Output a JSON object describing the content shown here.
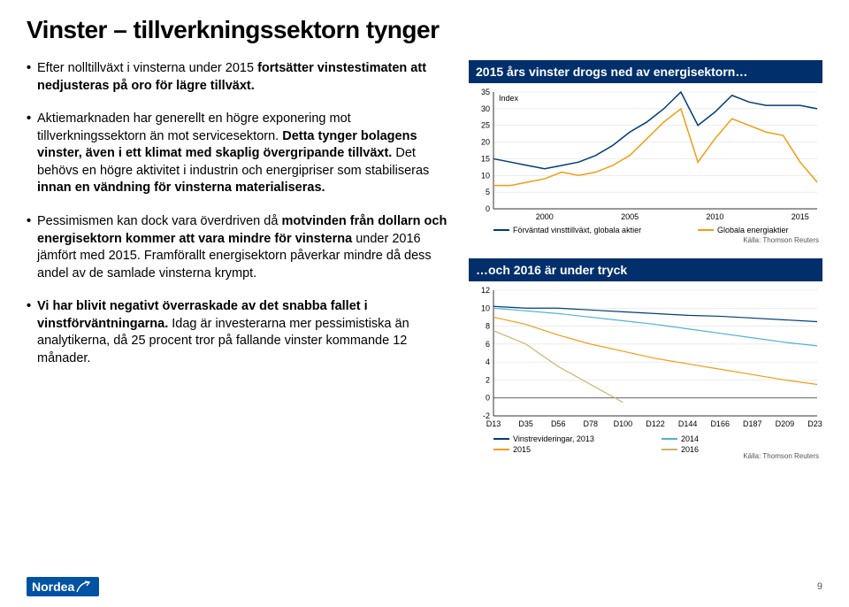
{
  "title": "Vinster – tillverkningssektorn tynger",
  "bullets": [
    {
      "pre": "Efter nolltillväxt i vinsterna under 2015 ",
      "bold": "fortsätter vinstestimaten att nedjusteras på oro för lägre tillväxt.",
      "post": ""
    },
    {
      "pre": "Aktiemarknaden har generellt en högre exponering mot tillverkningssektorn än mot servicesektorn. ",
      "bold": "Detta tynger bolagens vinster, även i ett klimat med skaplig övergripande tillväxt.",
      "post": " Det behövs en högre aktivitet i industrin och energipriser som stabiliseras ",
      "bold2": "innan en vändning för vinsterna materialiseras."
    },
    {
      "pre": "Pessimismen kan dock vara överdriven då ",
      "bold": "motvinden från dollarn och energisektorn kommer att vara mindre för vinsterna",
      "post": " under 2016 jämfört med 2015. Framförallt energisektorn påverkar mindre då dess andel av de samlade vinsterna krympt."
    },
    {
      "pre": "",
      "bold": "Vi har blivit negativt överraskade av det snabba fallet i vinstförväntningarna.",
      "post": " Idag är investerarna mer pessimistiska än analytikerna, då 25 procent tror på fallande vinster kommande 12 månader."
    }
  ],
  "chart1": {
    "title": "2015 års vinster drogs ned av energisektorn…",
    "type": "line",
    "index_label": "Index",
    "ylim": [
      0,
      35
    ],
    "ytick_step": 5,
    "xlim": [
      1997,
      2016
    ],
    "xticks": [
      2000,
      2005,
      2010,
      2015
    ],
    "background_color": "#ffffff",
    "grid_color": "#e0e0e0",
    "axis_color": "#333333",
    "series": [
      {
        "name": "Förväntad vinsttillväxt, globala aktier",
        "color": "#003c78",
        "width": 1.5,
        "data": [
          [
            1997,
            15
          ],
          [
            1998,
            14
          ],
          [
            1999,
            13
          ],
          [
            2000,
            12
          ],
          [
            2001,
            13
          ],
          [
            2002,
            14
          ],
          [
            2003,
            16
          ],
          [
            2004,
            19
          ],
          [
            2005,
            23
          ],
          [
            2006,
            26
          ],
          [
            2007,
            30
          ],
          [
            2008,
            35
          ],
          [
            2009,
            25
          ],
          [
            2010,
            29
          ],
          [
            2011,
            34
          ],
          [
            2012,
            32
          ],
          [
            2013,
            31
          ],
          [
            2014,
            31
          ],
          [
            2015,
            31
          ],
          [
            2016,
            30
          ]
        ]
      },
      {
        "name": "Globala energiaktier",
        "color": "#f39c12",
        "width": 1.5,
        "data": [
          [
            1997,
            7
          ],
          [
            1998,
            7
          ],
          [
            1999,
            8
          ],
          [
            2000,
            9
          ],
          [
            2001,
            11
          ],
          [
            2002,
            10
          ],
          [
            2003,
            11
          ],
          [
            2004,
            13
          ],
          [
            2005,
            16
          ],
          [
            2006,
            21
          ],
          [
            2007,
            26
          ],
          [
            2008,
            30
          ],
          [
            2009,
            14
          ],
          [
            2010,
            21
          ],
          [
            2011,
            27
          ],
          [
            2012,
            25
          ],
          [
            2013,
            23
          ],
          [
            2014,
            22
          ],
          [
            2015,
            14
          ],
          [
            2016,
            8
          ]
        ]
      }
    ],
    "source": "Källa: Thomson Reuters"
  },
  "chart2": {
    "title": "…och 2016 är under tryck",
    "type": "line",
    "ylim": [
      -2,
      12
    ],
    "ytick_step": 2,
    "xcats": [
      "D13",
      "D35",
      "D56",
      "D78",
      "D100",
      "D122",
      "D144",
      "D166",
      "D187",
      "D209",
      "D231"
    ],
    "background_color": "#ffffff",
    "grid_color": "#e0e0e0",
    "axis_color": "#333333",
    "series": [
      {
        "name": "Vinstrevideringar, 2013",
        "color": "#003c78",
        "width": 1.2,
        "data": [
          10.2,
          10.0,
          10.0,
          9.8,
          9.6,
          9.4,
          9.2,
          9.1,
          8.9,
          8.7,
          8.5
        ]
      },
      {
        "name": "2014",
        "color": "#4fb0d6",
        "width": 1.2,
        "data": [
          10.0,
          9.7,
          9.4,
          9.0,
          8.6,
          8.2,
          7.7,
          7.2,
          6.7,
          6.2,
          5.8
        ]
      },
      {
        "name": "2015",
        "color": "#f39c12",
        "width": 1.2,
        "data": [
          9.0,
          8.2,
          7.0,
          6.0,
          5.2,
          4.4,
          3.8,
          3.2,
          2.6,
          2.0,
          1.5
        ]
      },
      {
        "name": "2016",
        "color": "#cbb26a",
        "width": 1.2,
        "data": [
          7.5,
          6.0,
          3.5,
          1.5,
          -0.5
        ]
      }
    ],
    "source": "Källa: Thomson Reuters"
  },
  "logo_text": "Nordea",
  "page_number": "9"
}
